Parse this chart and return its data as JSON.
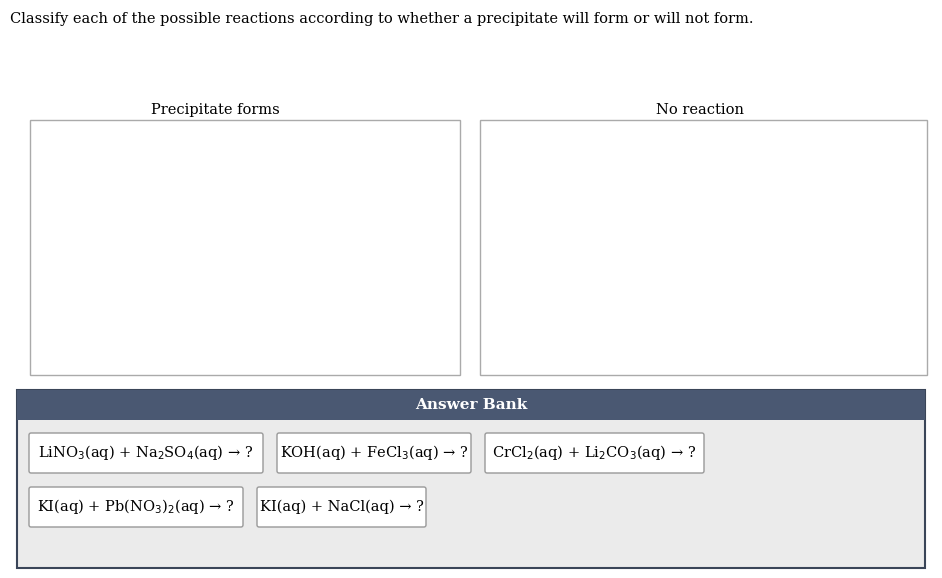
{
  "title": "Classify each of the possible reactions according to whether a precipitate will form or will not form.",
  "title_fontsize": 10.5,
  "title_color": "#000000",
  "box_left_label": "Precipitate forms",
  "box_right_label": "No reaction",
  "label_fontsize": 10.5,
  "answer_bank_label": "Answer Bank",
  "answer_bank_bg": "#4a5872",
  "answer_bank_text_color": "#ffffff",
  "answer_bank_fontsize": 11,
  "items_bg": "#ebebeb",
  "item_border": "#999999",
  "item_fontsize": 10.5,
  "reactions": [
    "LiNO$_3$(aq) + Na$_2$SO$_4$(aq) → ?",
    "KOH(aq) + FeCl$_3$(aq) → ?",
    "CrCl$_2$(aq) + Li$_2$CO$_3$(aq) → ?",
    "KI(aq) + Pb(NO$_3$)$_2$(aq) → ?",
    "KI(aq) + NaCl(aq) → ?"
  ],
  "background_color": "#ffffff"
}
